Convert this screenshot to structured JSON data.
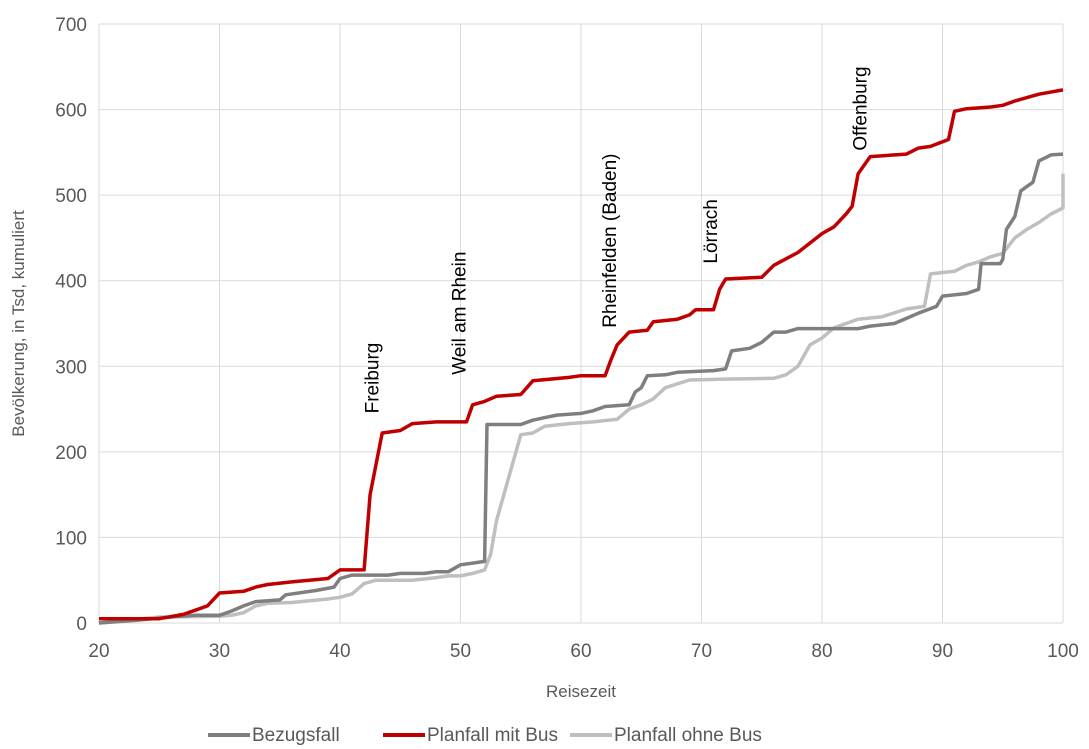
{
  "chart_data": {
    "type": "line",
    "title": "",
    "xlabel": "Reisezeit",
    "ylabel": "Bevölkerung, in Tsd, kumuliert",
    "xlim": [
      20,
      100
    ],
    "ylim": [
      0,
      700
    ],
    "xticks": [
      "20",
      "30",
      "40",
      "50",
      "60",
      "70",
      "80",
      "90",
      "100"
    ],
    "yticks": [
      "0",
      "100",
      "200",
      "300",
      "400",
      "500",
      "600",
      "700"
    ],
    "grid": "vertical and horizontal",
    "legend_position": "bottom",
    "series": [
      {
        "name": "Bezugsfall",
        "color": "#7f7f7f",
        "points": [
          [
            20,
            0
          ],
          [
            23,
            3
          ],
          [
            26,
            7
          ],
          [
            28,
            9
          ],
          [
            30,
            9
          ],
          [
            31,
            14
          ],
          [
            32,
            20
          ],
          [
            33,
            25
          ],
          [
            35,
            27
          ],
          [
            35.5,
            33
          ],
          [
            38,
            38
          ],
          [
            39.5,
            42
          ],
          [
            40,
            52
          ],
          [
            41,
            56
          ],
          [
            44,
            56
          ],
          [
            45,
            58
          ],
          [
            47,
            58
          ],
          [
            48,
            60
          ],
          [
            49,
            60
          ],
          [
            50,
            68
          ],
          [
            51,
            70
          ],
          [
            52,
            72
          ],
          [
            52.2,
            232
          ],
          [
            55,
            232
          ],
          [
            56,
            237
          ],
          [
            57,
            240
          ],
          [
            58,
            243
          ],
          [
            60,
            245
          ],
          [
            61,
            248
          ],
          [
            62,
            253
          ],
          [
            64,
            255
          ],
          [
            64.5,
            270
          ],
          [
            65,
            275
          ],
          [
            65.5,
            289
          ],
          [
            67,
            290
          ],
          [
            68,
            293
          ],
          [
            71,
            295
          ],
          [
            72,
            297
          ],
          [
            72.5,
            318
          ],
          [
            74,
            321
          ],
          [
            75,
            328
          ],
          [
            76,
            340
          ],
          [
            77,
            340
          ],
          [
            78,
            344
          ],
          [
            83,
            344
          ],
          [
            84,
            347
          ],
          [
            86,
            350
          ],
          [
            87,
            356
          ],
          [
            88,
            362
          ],
          [
            89.5,
            370
          ],
          [
            90,
            382
          ],
          [
            92,
            385
          ],
          [
            93,
            390
          ],
          [
            93.2,
            420
          ],
          [
            94.8,
            420
          ],
          [
            95,
            425
          ],
          [
            95.3,
            460
          ],
          [
            96,
            475
          ],
          [
            96.5,
            505
          ],
          [
            97,
            510
          ],
          [
            97.5,
            515
          ],
          [
            98,
            540
          ],
          [
            99,
            547
          ],
          [
            100,
            548
          ]
        ]
      },
      {
        "name": "Planfall mit Bus",
        "color": "#c00000",
        "points": [
          [
            20,
            5
          ],
          [
            25,
            5
          ],
          [
            27,
            10
          ],
          [
            28,
            15
          ],
          [
            29,
            20
          ],
          [
            30,
            35
          ],
          [
            32,
            37
          ],
          [
            33,
            42
          ],
          [
            34,
            45
          ],
          [
            36,
            48
          ],
          [
            39,
            52
          ],
          [
            39.5,
            57
          ],
          [
            40,
            62
          ],
          [
            42,
            62
          ],
          [
            42.5,
            150
          ],
          [
            43.5,
            222
          ],
          [
            45,
            225
          ],
          [
            46,
            233
          ],
          [
            48,
            235
          ],
          [
            50.5,
            235
          ],
          [
            51,
            255
          ],
          [
            52,
            259
          ],
          [
            53,
            265
          ],
          [
            55,
            267
          ],
          [
            56,
            283
          ],
          [
            59,
            287
          ],
          [
            60,
            289
          ],
          [
            62,
            289
          ],
          [
            62.5,
            308
          ],
          [
            63,
            325
          ],
          [
            64,
            340
          ],
          [
            65.5,
            342
          ],
          [
            66,
            352
          ],
          [
            68,
            355
          ],
          [
            69,
            360
          ],
          [
            69.5,
            366
          ],
          [
            71,
            366
          ],
          [
            71.5,
            390
          ],
          [
            72,
            402
          ],
          [
            75,
            404
          ],
          [
            76,
            418
          ],
          [
            78,
            433
          ],
          [
            80,
            455
          ],
          [
            81,
            463
          ],
          [
            82,
            478
          ],
          [
            82.5,
            487
          ],
          [
            83,
            525
          ],
          [
            84,
            545
          ],
          [
            87,
            548
          ],
          [
            88,
            555
          ],
          [
            89,
            557
          ],
          [
            90.5,
            565
          ],
          [
            91,
            598
          ],
          [
            92,
            601
          ],
          [
            94,
            603
          ],
          [
            95,
            605
          ],
          [
            96,
            610
          ],
          [
            98,
            618
          ],
          [
            100,
            623
          ]
        ]
      },
      {
        "name": "Planfall ohne Bus",
        "color": "#bfbfbf",
        "points": [
          [
            20,
            0
          ],
          [
            25,
            7
          ],
          [
            30,
            8
          ],
          [
            31,
            9
          ],
          [
            32,
            12
          ],
          [
            33,
            20
          ],
          [
            34,
            23
          ],
          [
            36,
            24
          ],
          [
            39,
            28
          ],
          [
            40,
            30
          ],
          [
            41,
            34
          ],
          [
            42,
            46
          ],
          [
            43,
            50
          ],
          [
            46,
            50
          ],
          [
            48,
            53
          ],
          [
            49,
            55
          ],
          [
            50,
            55
          ],
          [
            51,
            58
          ],
          [
            52,
            62
          ],
          [
            52.5,
            80
          ],
          [
            53,
            120
          ],
          [
            54,
            170
          ],
          [
            55,
            220
          ],
          [
            56,
            222
          ],
          [
            57,
            230
          ],
          [
            59,
            233
          ],
          [
            61,
            235
          ],
          [
            63,
            238
          ],
          [
            64,
            250
          ],
          [
            65,
            255
          ],
          [
            66,
            262
          ],
          [
            67,
            275
          ],
          [
            69,
            284
          ],
          [
            72,
            285
          ],
          [
            76,
            286
          ],
          [
            77,
            290
          ],
          [
            78,
            300
          ],
          [
            79,
            325
          ],
          [
            80,
            333
          ],
          [
            81,
            345
          ],
          [
            82,
            350
          ],
          [
            83,
            355
          ],
          [
            85,
            358
          ],
          [
            87,
            367
          ],
          [
            88.5,
            370
          ],
          [
            89,
            408
          ],
          [
            91,
            411
          ],
          [
            92,
            418
          ],
          [
            93,
            422
          ],
          [
            94,
            428
          ],
          [
            95,
            432
          ],
          [
            96,
            450
          ],
          [
            97,
            460
          ],
          [
            98,
            468
          ],
          [
            99,
            478
          ],
          [
            100,
            485
          ],
          [
            100,
            525
          ]
        ]
      }
    ],
    "annotations": [
      {
        "text": "Freiburg",
        "x": 43.2,
        "y": 245
      },
      {
        "text": "Weil am Rhein",
        "x": 50.4,
        "y": 290
      },
      {
        "text": "Rheinfelden (Baden)",
        "x": 62.9,
        "y": 345
      },
      {
        "text": "Lörrach",
        "x": 71.3,
        "y": 420
      },
      {
        "text": "Offenburg",
        "x": 83.7,
        "y": 552
      }
    ]
  }
}
